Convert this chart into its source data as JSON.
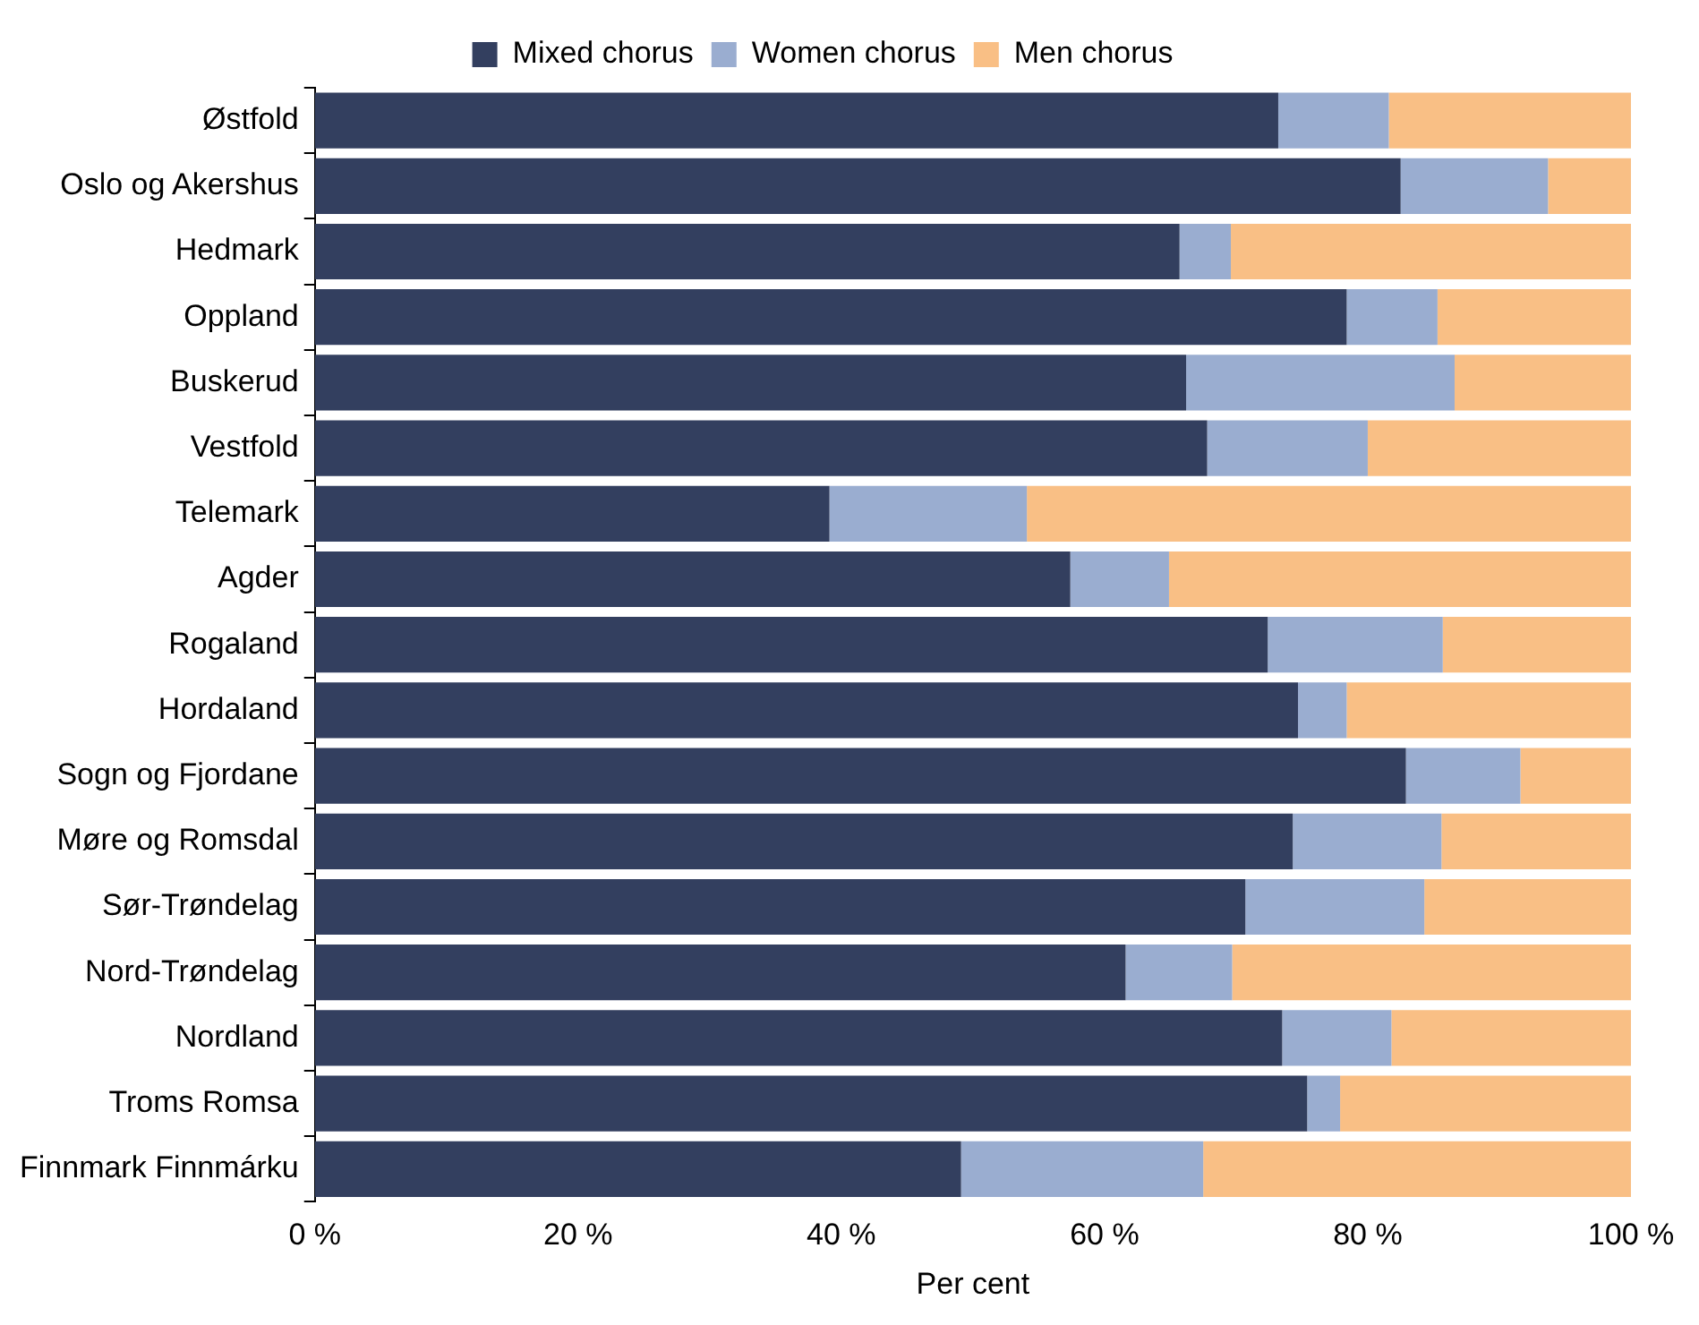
{
  "chart_data": {
    "type": "bar",
    "orientation": "horizontal",
    "stacked": true,
    "xlabel": "Per cent",
    "categories": [
      "Østfold",
      "Oslo og Akershus",
      "Hedmark",
      "Oppland",
      "Buskerud",
      "Vestfold",
      "Telemark",
      "Agder",
      "Rogaland",
      "Hordaland",
      "Sogn og Fjordane",
      "Møre og Romsdal",
      "Sør-Trøndelag",
      "Nord-Trøndelag",
      "Nordland",
      "Troms Romsa",
      "Finnmark Finnmárku"
    ],
    "series": [
      {
        "name": "Mixed chorus",
        "color": "#333f5f",
        "values": [
          73.2,
          82.5,
          65.7,
          78.4,
          66.2,
          67.8,
          39.1,
          57.4,
          72.4,
          74.7,
          82.9,
          74.3,
          70.7,
          61.6,
          73.5,
          75.4,
          49.1
        ]
      },
      {
        "name": "Women chorus",
        "color": "#9aadd0",
        "values": [
          8.4,
          11.2,
          3.9,
          6.9,
          20.4,
          12.2,
          15.0,
          7.5,
          13.3,
          3.7,
          8.7,
          11.3,
          13.6,
          8.1,
          8.3,
          2.5,
          18.4
        ]
      },
      {
        "name": "Men chorus",
        "color": "#f9bf85",
        "values": [
          18.4,
          6.3,
          30.4,
          14.7,
          13.4,
          20.0,
          45.9,
          35.1,
          14.3,
          21.6,
          8.4,
          14.4,
          15.7,
          30.3,
          18.2,
          22.1,
          32.5
        ]
      }
    ],
    "xlim": [
      0,
      100
    ],
    "xticks": [
      {
        "value": 0,
        "label": "0 %"
      },
      {
        "value": 20,
        "label": "20 %"
      },
      {
        "value": 40,
        "label": "40 %"
      },
      {
        "value": 60,
        "label": "60 %"
      },
      {
        "value": 80,
        "label": "80 %"
      },
      {
        "value": 100,
        "label": "100 %"
      }
    ],
    "grid": false,
    "legend": "top"
  }
}
